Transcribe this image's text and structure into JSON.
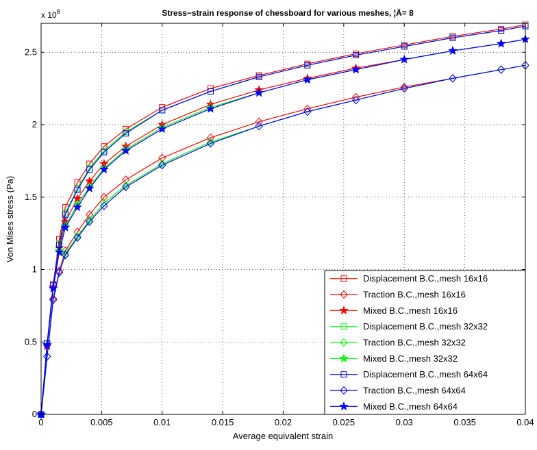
{
  "chart_data": {
    "type": "line",
    "title": "Stress−strain response of chessboard for various meshes, ¦Ä= 8",
    "xlabel": "Average equivalent strain",
    "ylabel": "Von Mises stress (Pa)",
    "y_exponent_label": "x 10",
    "y_exponent": "8",
    "xlim": [
      0,
      0.04
    ],
    "ylim": [
      0,
      2.7
    ],
    "y_scale_factor": 100000000,
    "grid": true,
    "legend_position": "bottom-right",
    "x_ticks": [
      {
        "value": 0,
        "label": "0"
      },
      {
        "value": 0.005,
        "label": "0.005"
      },
      {
        "value": 0.01,
        "label": "0.01"
      },
      {
        "value": 0.015,
        "label": "0.015"
      },
      {
        "value": 0.02,
        "label": "0.02"
      },
      {
        "value": 0.025,
        "label": "0.025"
      },
      {
        "value": 0.03,
        "label": "0.03"
      },
      {
        "value": 0.035,
        "label": "0.035"
      },
      {
        "value": 0.04,
        "label": "0.04"
      }
    ],
    "y_ticks": [
      {
        "value": 0,
        "label": "0"
      },
      {
        "value": 0.5,
        "label": "0.5"
      },
      {
        "value": 1,
        "label": "1"
      },
      {
        "value": 1.5,
        "label": "1.5"
      },
      {
        "value": 2,
        "label": "2"
      },
      {
        "value": 2.5,
        "label": "2.5"
      }
    ],
    "series": [
      {
        "name": "Displacement B.C.,mesh 16x16",
        "color": "#ff0000",
        "marker": "square",
        "x": [
          0,
          0.0005,
          0.001,
          0.0015,
          0.002,
          0.003,
          0.004,
          0.0052,
          0.007,
          0.01,
          0.014,
          0.018,
          0.022,
          0.026,
          0.03,
          0.034,
          0.038,
          0.04
        ],
        "y": [
          0,
          0.49,
          0.9,
          1.21,
          1.43,
          1.6,
          1.73,
          1.85,
          1.97,
          2.12,
          2.25,
          2.34,
          2.42,
          2.49,
          2.55,
          2.61,
          2.66,
          2.69
        ]
      },
      {
        "name": "Traction B.C.,mesh 16x16",
        "color": "#ff0000",
        "marker": "diamond",
        "x": [
          0,
          0.0005,
          0.001,
          0.0015,
          0.002,
          0.003,
          0.004,
          0.0052,
          0.007,
          0.01,
          0.014,
          0.018,
          0.022,
          0.026,
          0.03,
          0.034,
          0.038,
          0.04
        ],
        "y": [
          0,
          0.4,
          0.8,
          0.99,
          1.13,
          1.26,
          1.38,
          1.5,
          1.62,
          1.77,
          1.91,
          2.02,
          2.11,
          2.19,
          2.26,
          2.32,
          2.38,
          2.41
        ]
      },
      {
        "name": "Mixed B.C.,mesh 16x16",
        "color": "#ff0000",
        "marker": "star",
        "x": [
          0,
          0.0005,
          0.001,
          0.0015,
          0.002,
          0.003,
          0.004,
          0.0052,
          0.007,
          0.01,
          0.014,
          0.018,
          0.022,
          0.026,
          0.03,
          0.034,
          0.038,
          0.04
        ],
        "y": [
          0,
          0.47,
          0.88,
          1.15,
          1.33,
          1.49,
          1.61,
          1.73,
          1.85,
          2.0,
          2.14,
          2.24,
          2.32,
          2.39,
          2.45,
          2.51,
          2.56,
          2.59
        ]
      },
      {
        "name": "Displacement B.C.,mesh 32x32",
        "color": "#00ff00",
        "marker": "square",
        "x": [
          0,
          0.0005,
          0.001,
          0.0015,
          0.002,
          0.003,
          0.004,
          0.0052,
          0.007,
          0.01,
          0.014,
          0.018,
          0.022,
          0.026,
          0.03,
          0.034,
          0.038,
          0.04
        ],
        "y": [
          0,
          0.49,
          0.89,
          1.18,
          1.39,
          1.56,
          1.7,
          1.82,
          1.95,
          2.1,
          2.23,
          2.33,
          2.41,
          2.48,
          2.54,
          2.6,
          2.65,
          2.68
        ]
      },
      {
        "name": "Traction B.C.,mesh 32x32",
        "color": "#00ff00",
        "marker": "diamond",
        "x": [
          0,
          0.0005,
          0.001,
          0.0015,
          0.002,
          0.003,
          0.004,
          0.0052,
          0.007,
          0.01,
          0.014,
          0.018,
          0.022,
          0.026,
          0.03,
          0.034,
          0.038,
          0.04
        ],
        "y": [
          0,
          0.4,
          0.79,
          0.98,
          1.11,
          1.23,
          1.34,
          1.46,
          1.58,
          1.73,
          1.88,
          1.99,
          2.09,
          2.17,
          2.25,
          2.32,
          2.38,
          2.41
        ]
      },
      {
        "name": "Mixed B.C.,mesh 32x32",
        "color": "#00ff00",
        "marker": "star",
        "x": [
          0,
          0.0005,
          0.001,
          0.0015,
          0.002,
          0.003,
          0.004,
          0.0052,
          0.007,
          0.01,
          0.014,
          0.018,
          0.022,
          0.026,
          0.03,
          0.034,
          0.038,
          0.04
        ],
        "y": [
          0,
          0.48,
          0.87,
          1.13,
          1.3,
          1.45,
          1.57,
          1.7,
          1.83,
          1.98,
          2.12,
          2.22,
          2.31,
          2.38,
          2.45,
          2.51,
          2.56,
          2.59
        ]
      },
      {
        "name": "Displacement B.C.,mesh 64x64",
        "color": "#0000ff",
        "marker": "square",
        "x": [
          0,
          0.0005,
          0.001,
          0.0015,
          0.002,
          0.003,
          0.004,
          0.0052,
          0.007,
          0.01,
          0.014,
          0.018,
          0.022,
          0.026,
          0.03,
          0.034,
          0.038,
          0.04
        ],
        "y": [
          0,
          0.49,
          0.89,
          1.17,
          1.38,
          1.55,
          1.69,
          1.81,
          1.94,
          2.1,
          2.23,
          2.33,
          2.41,
          2.48,
          2.54,
          2.6,
          2.65,
          2.68
        ]
      },
      {
        "name": "Traction B.C.,mesh 64x64",
        "color": "#0000ff",
        "marker": "diamond",
        "x": [
          0,
          0.0005,
          0.001,
          0.0015,
          0.002,
          0.003,
          0.004,
          0.0052,
          0.007,
          0.01,
          0.014,
          0.018,
          0.022,
          0.026,
          0.03,
          0.034,
          0.038,
          0.04
        ],
        "y": [
          0,
          0.4,
          0.79,
          0.98,
          1.1,
          1.22,
          1.33,
          1.44,
          1.57,
          1.72,
          1.87,
          1.99,
          2.09,
          2.17,
          2.25,
          2.32,
          2.38,
          2.41
        ]
      },
      {
        "name": "Mixed B.C.,mesh 64x64",
        "color": "#0000ff",
        "marker": "star",
        "x": [
          0,
          0.0005,
          0.001,
          0.0015,
          0.002,
          0.003,
          0.004,
          0.0052,
          0.007,
          0.01,
          0.014,
          0.018,
          0.022,
          0.026,
          0.03,
          0.034,
          0.038,
          0.04
        ],
        "y": [
          0,
          0.48,
          0.87,
          1.12,
          1.29,
          1.43,
          1.56,
          1.69,
          1.82,
          1.97,
          2.11,
          2.22,
          2.31,
          2.38,
          2.45,
          2.51,
          2.56,
          2.59
        ]
      }
    ]
  }
}
